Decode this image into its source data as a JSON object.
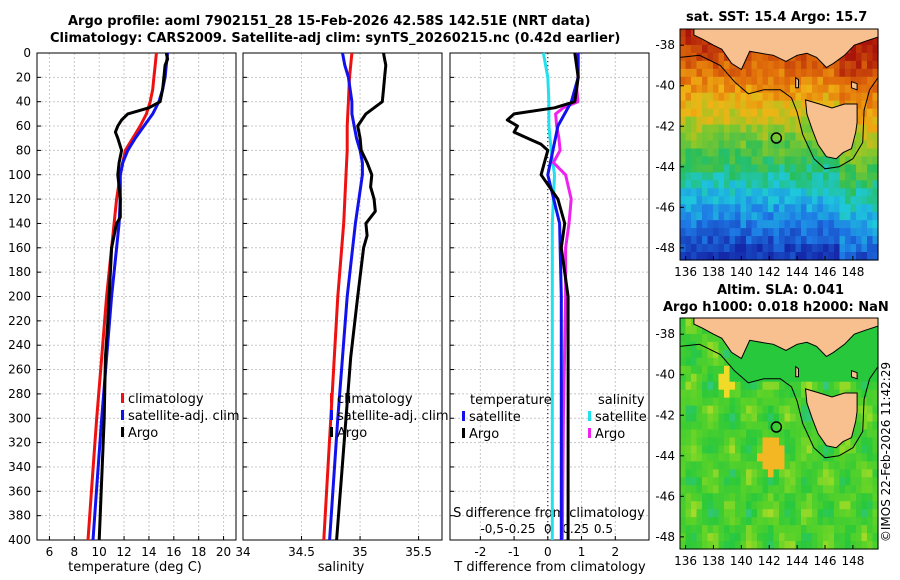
{
  "header": {
    "title_line1": "Argo profile: aoml 7902151_28 15-Feb-2026 42.58S 142.51E (NRT data)",
    "title_line2": "Climatology: CARS2009. Satellite-adj clim: synTS_20260215.nc (0.42d earlier)"
  },
  "map_sst": {
    "title": "sat. SST: 15.4 Argo: 15.7"
  },
  "map_sla": {
    "title_line1": "Altim. SLA: 0.041",
    "title_line2": "Argo h1000: 0.018 h2000: NaN"
  },
  "copyright": "©IMOS 22-Feb-2026 11:42:29",
  "colors": {
    "argo": "#000000",
    "climatology": "#ee1111",
    "satellite": "#1111ee",
    "sal_satellite": "#22e0ee",
    "sal_argo": "#ee22ee"
  },
  "legends": {
    "temp_panel": [
      "climatology",
      "satellite-adj. clim",
      "Argo"
    ],
    "sal_panel": [
      "climatology",
      "satellite-adj. clim",
      "Argo"
    ],
    "diff_temp_header": "temperature",
    "diff_sal_header": "salinity",
    "diff_temp_items": [
      "satellite",
      "Argo"
    ],
    "diff_sal_items": [
      "satellite",
      "Argo"
    ]
  },
  "chart_data": [
    {
      "type": "line",
      "id": "temperature",
      "xlabel": "temperature (deg C)",
      "ylabel": "",
      "xlim": [
        5,
        21
      ],
      "ylim": [
        400,
        0
      ],
      "grid": true,
      "xticks": [
        6,
        8,
        10,
        12,
        14,
        16,
        18,
        20
      ],
      "yticks": [
        0,
        20,
        40,
        60,
        80,
        100,
        120,
        140,
        160,
        180,
        200,
        220,
        240,
        260,
        280,
        300,
        320,
        340,
        360,
        380,
        400
      ],
      "series": [
        {
          "name": "climatology",
          "depth": [
            0,
            10,
            20,
            30,
            40,
            50,
            60,
            70,
            80,
            90,
            100,
            120,
            140,
            160,
            180,
            200,
            250,
            300,
            350,
            400
          ],
          "values": [
            14.6,
            14.5,
            14.4,
            14.3,
            14.1,
            13.8,
            13.3,
            12.7,
            12.1,
            11.9,
            11.7,
            11.4,
            11.2,
            11.0,
            10.8,
            10.6,
            10.2,
            9.8,
            9.45,
            9.1
          ]
        },
        {
          "name": "satellite-adj. clim",
          "depth": [
            0,
            10,
            20,
            30,
            40,
            50,
            60,
            70,
            80,
            90,
            100,
            120,
            140,
            160,
            180,
            200,
            250,
            300,
            350,
            400
          ],
          "values": [
            15.5,
            15.4,
            15.3,
            15.1,
            14.8,
            14.3,
            13.6,
            12.9,
            12.3,
            11.9,
            11.7,
            11.7,
            11.6,
            11.4,
            11.2,
            11.0,
            10.6,
            10.2,
            9.85,
            9.5
          ]
        },
        {
          "name": "Argo",
          "depth": [
            0,
            5,
            10,
            20,
            30,
            40,
            45,
            50,
            55,
            60,
            65,
            70,
            80,
            90,
            100,
            110,
            120,
            135,
            140,
            150,
            160,
            180,
            200,
            220,
            250,
            300,
            350,
            400
          ],
          "values": [
            15.4,
            15.5,
            15.3,
            15.2,
            15.1,
            14.9,
            14.0,
            12.3,
            11.8,
            11.5,
            11.3,
            11.5,
            11.8,
            11.6,
            11.5,
            11.6,
            11.7,
            11.7,
            11.4,
            11.2,
            11.0,
            10.9,
            10.8,
            10.7,
            10.5,
            10.4,
            10.2,
            10.0
          ]
        }
      ]
    },
    {
      "type": "line",
      "id": "salinity",
      "xlabel": "salinity",
      "ylabel": "",
      "xlim": [
        34.0,
        35.7
      ],
      "ylim": [
        400,
        0
      ],
      "grid": true,
      "xticks": [
        34,
        34.5,
        35,
        35.5
      ],
      "xticklabels": [
        "34",
        "34.5",
        "35",
        "35.5"
      ],
      "series": [
        {
          "name": "climatology",
          "depth": [
            0,
            10,
            20,
            40,
            60,
            80,
            100,
            140,
            200,
            300,
            400
          ],
          "values": [
            34.93,
            34.92,
            34.91,
            34.9,
            34.89,
            34.89,
            34.88,
            34.86,
            34.81,
            34.75,
            34.69
          ]
        },
        {
          "name": "satellite-adj. clim",
          "depth": [
            0,
            10,
            20,
            40,
            50,
            70,
            80,
            90,
            100,
            140,
            200,
            300,
            400
          ],
          "values": [
            34.85,
            34.87,
            34.9,
            34.93,
            34.93,
            34.97,
            35.0,
            35.02,
            35.02,
            34.96,
            34.89,
            34.81,
            34.74
          ]
        },
        {
          "name": "Argo",
          "depth": [
            0,
            5,
            10,
            20,
            30,
            40,
            50,
            60,
            70,
            80,
            90,
            100,
            110,
            120,
            130,
            140,
            150,
            160,
            200,
            250,
            300,
            350,
            400
          ],
          "values": [
            35.2,
            35.21,
            35.22,
            35.21,
            35.2,
            35.19,
            35.05,
            34.98,
            35.0,
            35.01,
            35.06,
            35.1,
            35.09,
            35.12,
            35.13,
            35.05,
            35.06,
            35.03,
            34.98,
            34.92,
            34.88,
            34.84,
            34.8
          ]
        }
      ]
    },
    {
      "type": "line",
      "id": "difference",
      "xlabel": "T difference from climatology",
      "xlabel_top": "S difference from climatology",
      "xlim": [
        -2.9,
        3.0
      ],
      "ylim": [
        400,
        0
      ],
      "grid": true,
      "xticks": [
        -2,
        -1,
        0,
        1,
        2
      ],
      "top_xticks": [
        -0.5,
        -0.25,
        0,
        0.25,
        0.5
      ],
      "top_xticklabels": [
        "-0,5",
        "-0.25",
        "0",
        "0.25",
        "0.5"
      ],
      "series": [
        {
          "name": "temperature satellite",
          "depth": [
            0,
            20,
            40,
            60,
            80,
            100,
            140,
            200,
            300,
            400
          ],
          "values": [
            0.9,
            0.9,
            0.7,
            0.3,
            0.15,
            0.0,
            0.35,
            0.4,
            0.4,
            0.4
          ]
        },
        {
          "name": "temperature Argo",
          "depth": [
            0,
            20,
            40,
            45,
            50,
            55,
            60,
            65,
            70,
            75,
            80,
            90,
            100,
            120,
            140,
            160,
            200,
            300,
            400
          ],
          "values": [
            0.8,
            0.9,
            0.8,
            0.2,
            -1.0,
            -1.2,
            -0.9,
            -1.0,
            -0.6,
            -0.2,
            0.0,
            -0.1,
            -0.2,
            0.3,
            0.5,
            0.4,
            0.6,
            0.6,
            0.6
          ]
        },
        {
          "name": "salinity satellite",
          "depth": [
            0,
            20,
            40,
            60,
            80,
            100,
            140,
            200,
            300,
            400
          ],
          "values": [
            -0.04,
            0.0,
            0.01,
            0.01,
            0.03,
            0.06,
            0.04,
            0.04,
            0.04,
            0.04
          ]
        },
        {
          "name": "salinity Argo",
          "depth": [
            0,
            10,
            20,
            30,
            40,
            45,
            50,
            60,
            70,
            80,
            90,
            100,
            120,
            140,
            160,
            200,
            300,
            400
          ],
          "values": [
            0.26,
            0.27,
            0.27,
            0.26,
            0.27,
            0.14,
            0.07,
            0.08,
            0.1,
            0.11,
            0.05,
            0.16,
            0.21,
            0.19,
            0.16,
            0.16,
            0.14,
            0.13
          ]
        }
      ]
    },
    {
      "type": "heatmap",
      "id": "sst_map",
      "xticks": [
        136,
        138,
        140,
        142,
        144,
        146,
        148
      ],
      "yticks": [
        -38,
        -40,
        -42,
        -44,
        -46,
        -48
      ],
      "xlim": [
        135.6,
        149.8
      ],
      "ylim": [
        -48.6,
        -37.2
      ],
      "argo_position": {
        "lon": 142.51,
        "lat": -42.58
      }
    },
    {
      "type": "heatmap",
      "id": "sla_map",
      "xticks": [
        136,
        138,
        140,
        142,
        144,
        146,
        148
      ],
      "yticks": [
        -38,
        -40,
        -42,
        -44,
        -46,
        -48
      ],
      "xlim": [
        135.6,
        149.8
      ],
      "ylim": [
        -48.6,
        -37.2
      ],
      "argo_position": {
        "lon": 142.51,
        "lat": -42.58
      }
    }
  ]
}
